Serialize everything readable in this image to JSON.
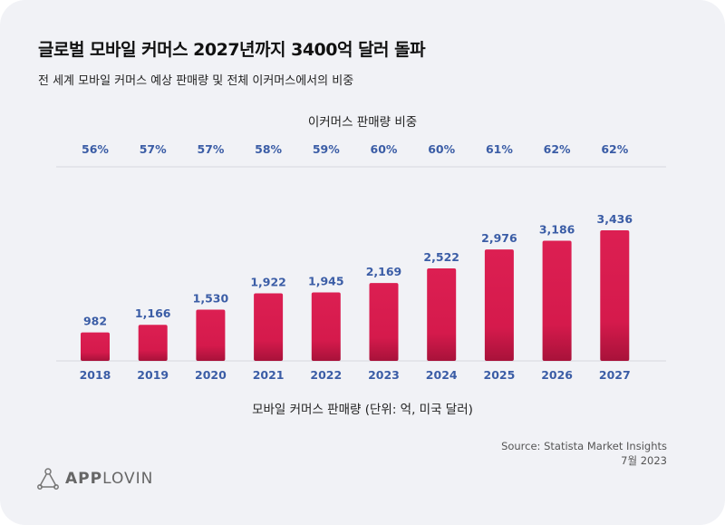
{
  "title": "글로벌 모바일 커머스 2027년까지 3400억 달러 돌파",
  "subtitle": "전 세계 모바일 커머스 예상 판매량 및 전체 이커머스에서의 비중",
  "source": "Source: Statista Market Insights",
  "date": "7월 2023",
  "logo": {
    "bold": "APP",
    "light": "LOVIN"
  },
  "colors": {
    "bar": "#d81b4f",
    "label": "#3b5da6",
    "background": "#f1f2f6"
  },
  "chart_data": {
    "type": "bar",
    "title": "글로벌 모바일 커머스 2027년까지 3400억 달러 돌파",
    "xlabel": "모바일 커머스 판매량 (단위: 억, 미국 달러)",
    "share_label": "이커머스 판매량 비중",
    "categories": [
      "2018",
      "2019",
      "2020",
      "2021",
      "2022",
      "2023",
      "2024",
      "2025",
      "2026",
      "2027"
    ],
    "values": [
      982,
      1166,
      1530,
      1922,
      1945,
      2169,
      2522,
      2976,
      3186,
      3436
    ],
    "value_labels": [
      "982",
      "1,166",
      "1,530",
      "1,922",
      "1,945",
      "2,169",
      "2,522",
      "2,976",
      "3,186",
      "3,436"
    ],
    "share": [
      "56%",
      "57%",
      "57%",
      "58%",
      "59%",
      "60%",
      "60%",
      "61%",
      "62%",
      "62%"
    ],
    "grid": false,
    "legend": "none"
  }
}
